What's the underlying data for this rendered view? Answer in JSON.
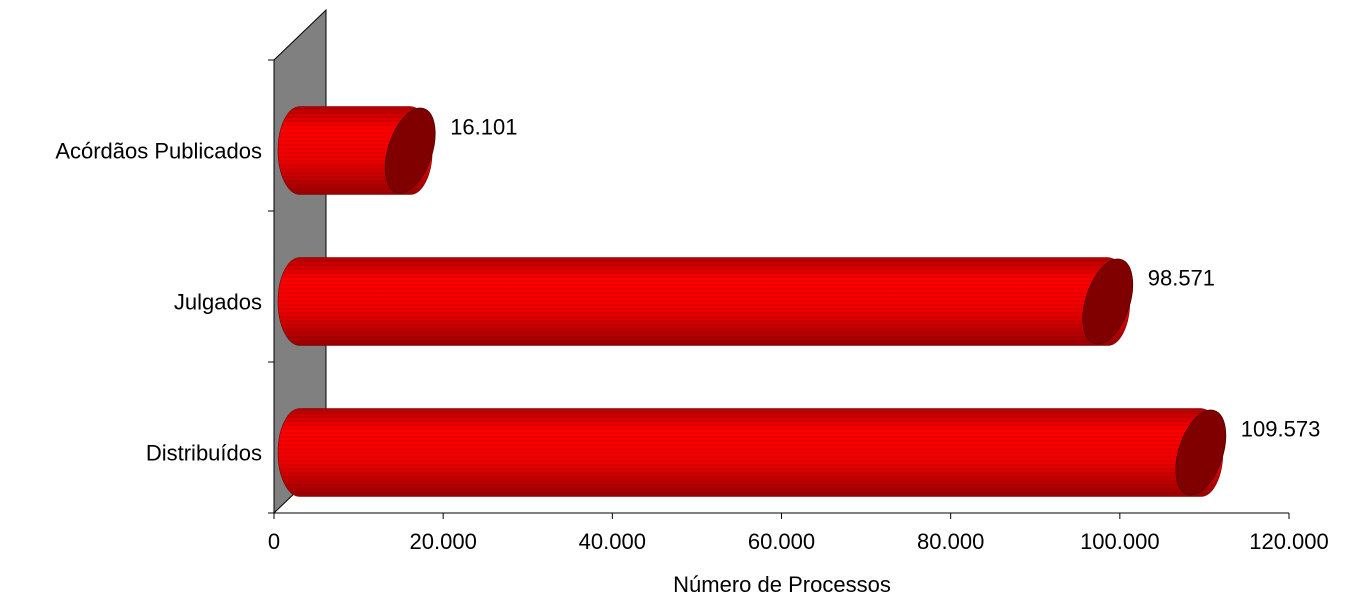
{
  "chart_data": {
    "type": "bar",
    "orientation": "horizontal",
    "style": "3d-cylinder",
    "categories": [
      "Distribuídos",
      "Julgados",
      "Acórdãos Publicados"
    ],
    "values": [
      109573,
      98571,
      16101
    ],
    "value_labels": [
      "109.573",
      "98.571",
      "16.101"
    ],
    "xlabel": "Número de Processos",
    "ylabel": "",
    "xlim": [
      0,
      120000
    ],
    "xticks": [
      0,
      20000,
      40000,
      60000,
      80000,
      100000,
      120000
    ],
    "xtick_labels": [
      "0",
      "20.000",
      "40.000",
      "60.000",
      "80.000",
      "100.000",
      "120.000"
    ],
    "grid": false,
    "legend": "none",
    "colors": {
      "bar": "#ff0000",
      "bar_cap": "#800000",
      "wall": "#808080"
    }
  }
}
